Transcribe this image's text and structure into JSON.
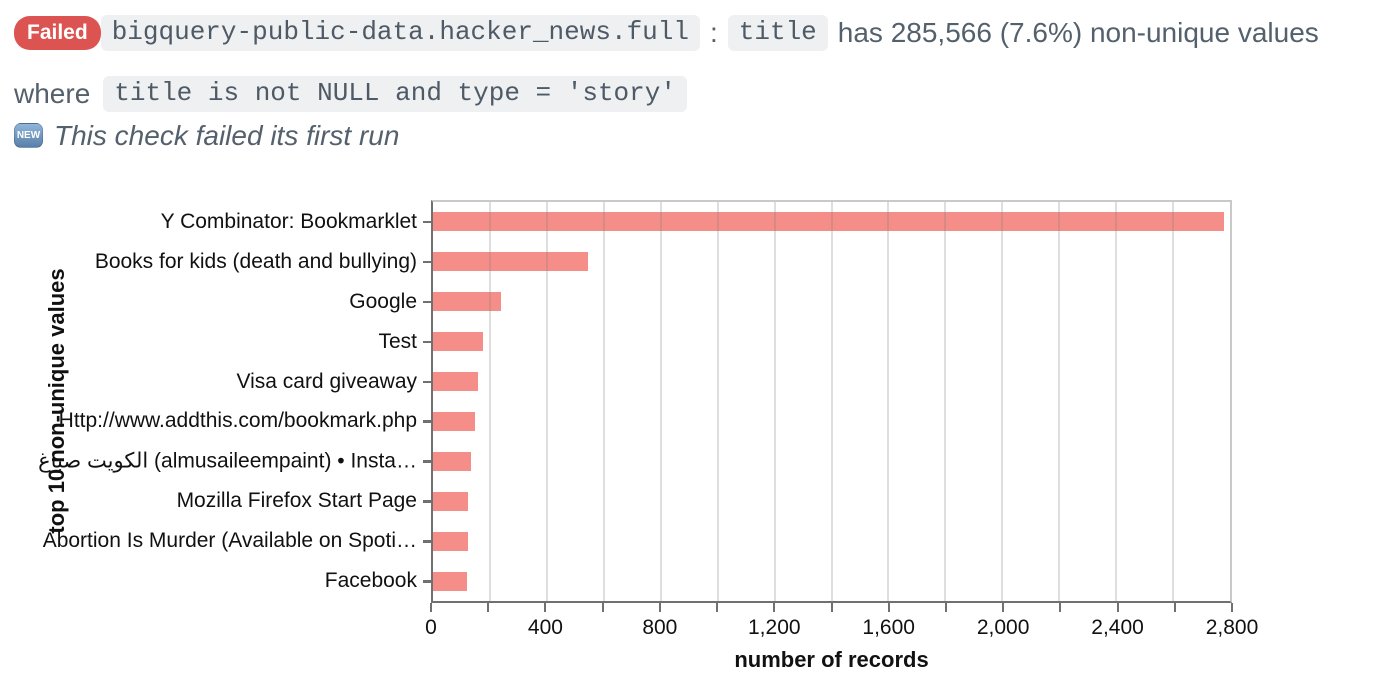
{
  "message": {
    "status": "Failed",
    "table": "bigquery-public-data.hacker_news.full",
    "separator": ":",
    "column": "title",
    "detail": "has 285,566 (7.6%) non-unique values",
    "where_label": "where",
    "where_clause": "title is not NULL and type = 'story'",
    "new_badge": "NEW",
    "first_run_note": "This check failed its first run"
  },
  "chart_data": {
    "type": "bar",
    "orientation": "horizontal",
    "categories": [
      "Y Combinator: Bookmarklet",
      "Books for kids (death and bullying)",
      "Google",
      "Test",
      "Visa card giveaway",
      "Http://www.addthis.com/bookmark.php",
      "صباغ‎ الكويت‎ (almusaileempaint) • Insta…",
      "Mozilla Firefox Start Page",
      "Abortion Is Murder (Available on Spoti…",
      "Facebook"
    ],
    "values": [
      2780,
      545,
      240,
      175,
      158,
      147,
      134,
      124,
      122,
      120
    ],
    "xlabel": "number of records",
    "ylabel": "top 10 non-unique values",
    "xlim": [
      0,
      2800
    ],
    "x_major_ticks": [
      0,
      400,
      800,
      1200,
      1600,
      2000,
      2400,
      2800
    ],
    "x_major_tick_labels": [
      "0",
      "400",
      "800",
      "1,200",
      "1,600",
      "2,000",
      "2,400",
      "2,800"
    ],
    "x_minor_tick_step": 200,
    "grid": true,
    "legend": false,
    "bar_color": "#f58e88"
  },
  "colors": {
    "failed_badge_bg": "#dc5452",
    "message_text": "#54606c",
    "code_bg": "#eef0f1",
    "code_text": "#4e5a66",
    "bar_fill": "#f58e88",
    "axis_dark": "#707070",
    "axis_light": "#c9c9c9",
    "gridline": "#d9d9d9"
  }
}
